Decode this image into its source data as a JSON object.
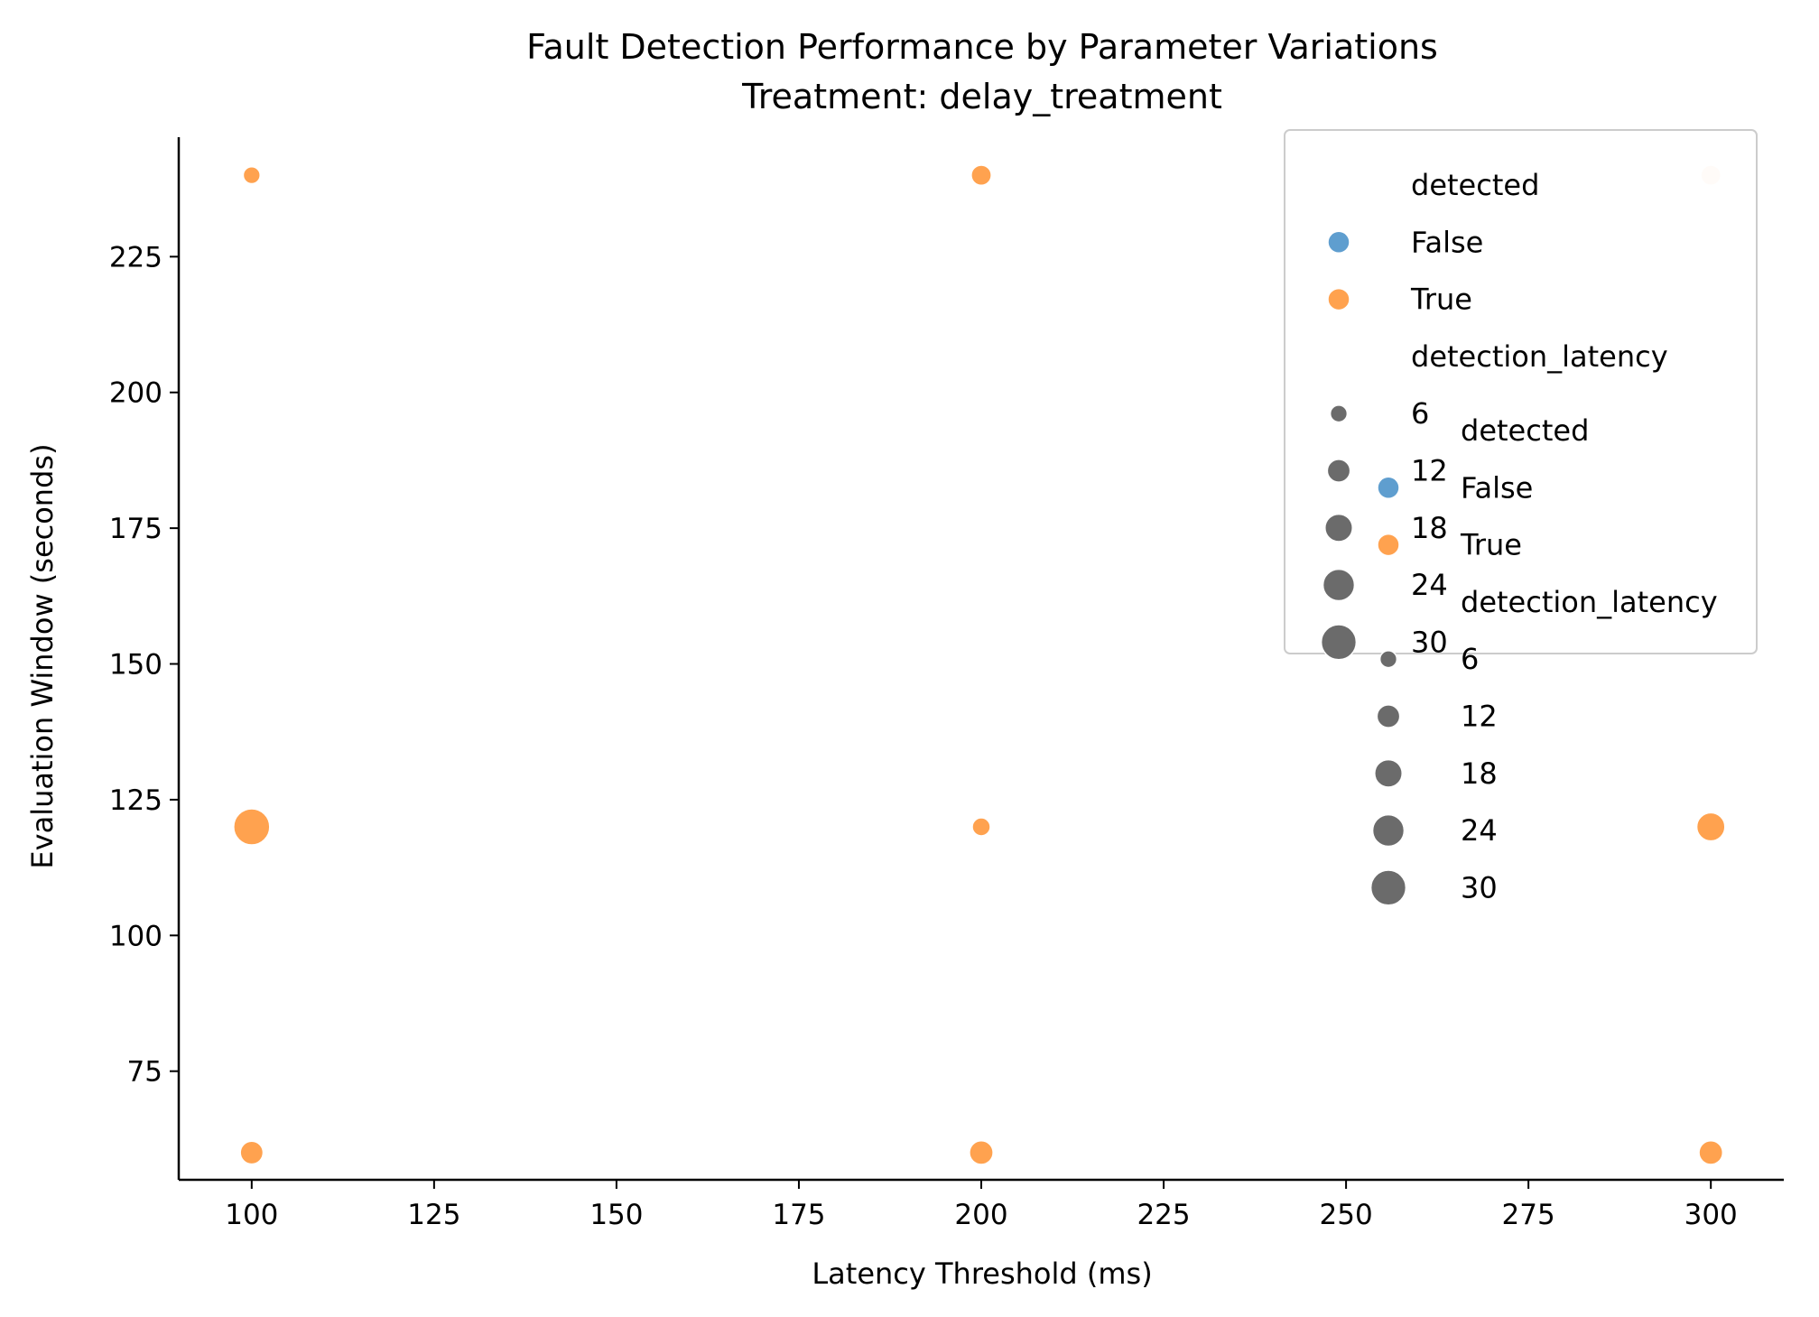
{
  "chart_data": {
    "type": "scatter",
    "title": "Fault Detection Performance by Parameter Variations",
    "subtitle": "Treatment: delay_treatment",
    "xlabel": "Latency Threshold (ms)",
    "ylabel": "Evaluation Window (seconds)",
    "xlim": [
      90,
      310
    ],
    "ylim": [
      55,
      247
    ],
    "xticks": [
      "100",
      "125",
      "150",
      "175",
      "200",
      "225",
      "250",
      "275",
      "300"
    ],
    "yticks": [
      "75",
      "100",
      "125",
      "150",
      "175",
      "200",
      "225"
    ],
    "grid": false,
    "points": [
      {
        "x": 100,
        "y": 240,
        "detected": "True",
        "detection_latency": 6
      },
      {
        "x": 100,
        "y": 120,
        "detected": "True",
        "detection_latency": 32
      },
      {
        "x": 100,
        "y": 60,
        "detected": "True",
        "detection_latency": 12
      },
      {
        "x": 200,
        "y": 240,
        "detected": "True",
        "detection_latency": 9
      },
      {
        "x": 200,
        "y": 120,
        "detected": "True",
        "detection_latency": 7
      },
      {
        "x": 200,
        "y": 60,
        "detected": "True",
        "detection_latency": 13
      },
      {
        "x": 300,
        "y": 240,
        "detected": "True",
        "detection_latency": 9
      },
      {
        "x": 300,
        "y": 120,
        "detected": "True",
        "detection_latency": 19
      },
      {
        "x": 300,
        "y": 60,
        "detected": "True",
        "detection_latency": 13
      }
    ],
    "legends": [
      {
        "placement": "upper-right",
        "framed": true,
        "hue_title": "detected",
        "hue_entries": [
          {
            "label": "False",
            "color": "#5f9ecf"
          },
          {
            "label": "True",
            "color": "#ffa24f"
          }
        ],
        "size_title": "detection_latency",
        "size_entries": [
          "6",
          "12",
          "18",
          "24",
          "30"
        ]
      },
      {
        "placement": "right",
        "framed": false,
        "hue_title": "detected",
        "hue_entries": [
          {
            "label": "False",
            "color": "#5f9ecf"
          },
          {
            "label": "True",
            "color": "#ffa24f"
          }
        ],
        "size_title": "detection_latency",
        "size_entries": [
          "6",
          "12",
          "18",
          "24",
          "30"
        ]
      }
    ],
    "colors": {
      "true": "#ffa24f",
      "false": "#5f9ecf",
      "faded_true": "#fdebdc",
      "size_marker": "#6b6b6b"
    }
  }
}
